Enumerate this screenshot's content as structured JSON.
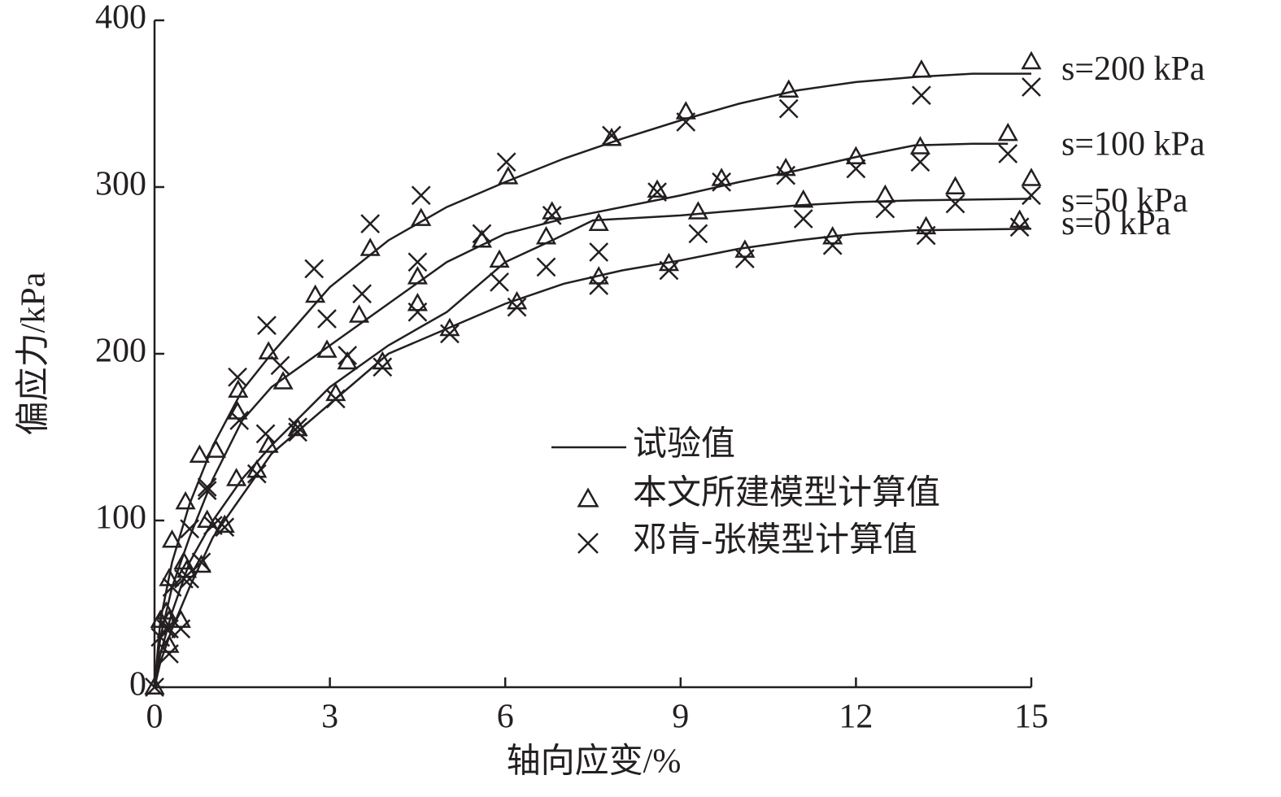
{
  "chart_data": {
    "type": "line",
    "xlabel": "轴向应变/%",
    "ylabel": "偏应力/kPa",
    "xlim": [
      0,
      15
    ],
    "xticks": [
      0,
      3,
      6,
      9,
      12,
      15
    ],
    "ylim": [
      0,
      400
    ],
    "yticks": [
      0,
      100,
      200,
      300,
      400
    ],
    "color": "#231f20",
    "legend": [
      "试验值",
      "本文所建模型计算值",
      "邓肯-张模型计算值"
    ],
    "series": [
      {
        "name": "s=200 kPa",
        "x": [
          0,
          0.1,
          0.3,
          0.6,
          1,
          1.5,
          2,
          3,
          4,
          5,
          6,
          7,
          8,
          9,
          10,
          11,
          12,
          13,
          14,
          15
        ],
        "values": [
          0,
          40,
          75,
          110,
          145,
          178,
          200,
          240,
          268,
          288,
          303,
          317,
          329,
          340,
          350,
          358,
          363,
          366,
          368,
          368
        ],
        "model_x": [
          0,
          0.1,
          0.25,
          0.3,
          0.53,
          0.77,
          1.43,
          1.95,
          2.75,
          3.69,
          4.56,
          6.05,
          7.82,
          9.09,
          10.85,
          13.12,
          15
        ],
        "model": [
          0,
          40,
          65,
          88,
          111,
          139,
          178,
          201,
          235,
          263,
          281,
          306,
          329,
          345,
          358,
          370,
          375
        ],
        "dz_x": [
          0,
          0.1,
          0.3,
          0.6,
          0.9,
          1.42,
          1.92,
          2.73,
          3.69,
          4.56,
          6.02,
          7.82,
          9.09,
          10.85,
          13.12,
          15
        ],
        "dz": [
          0,
          30,
          60,
          95,
          120,
          186,
          217,
          251,
          278,
          295,
          315,
          331,
          339,
          347,
          355,
          360
        ]
      },
      {
        "name": "s=100 kPa",
        "x": [
          0,
          0.1,
          0.3,
          0.6,
          1,
          1.5,
          2,
          3,
          4,
          5,
          6,
          7,
          8,
          9,
          10,
          11,
          12,
          13,
          14,
          14.6
        ],
        "values": [
          0,
          30,
          60,
          90,
          125,
          160,
          180,
          205,
          230,
          255,
          272,
          281,
          288,
          295,
          303,
          310,
          318,
          325,
          326,
          326
        ],
        "model_x": [
          0.2,
          0.5,
          1.05,
          1.42,
          2.2,
          2.95,
          3.5,
          4.5,
          5.6,
          6.8,
          8.6,
          9.7,
          10.8,
          12,
          13.1,
          14.6
        ],
        "model": [
          45,
          75,
          142,
          165,
          183,
          202,
          223,
          246,
          268,
          285,
          298,
          305,
          311,
          318,
          324,
          332
        ],
        "dz_x": [
          0.2,
          0.5,
          0.9,
          1.45,
          2.15,
          2.95,
          3.55,
          4.5,
          5.6,
          6.8,
          8.6,
          9.7,
          10.8,
          12,
          13.1,
          14.6
        ],
        "dz": [
          35,
          65,
          118,
          160,
          193,
          221,
          236,
          255,
          272,
          283,
          297,
          303,
          307,
          311,
          315,
          320
        ]
      },
      {
        "name": "s=50 kPa",
        "x": [
          0,
          0.1,
          0.3,
          0.6,
          1,
          1.5,
          2,
          3,
          4,
          5,
          6,
          6.8,
          7.5,
          8,
          9,
          10,
          11,
          12,
          13,
          15
        ],
        "values": [
          0,
          20,
          45,
          75,
          100,
          125,
          145,
          180,
          205,
          225,
          255,
          268,
          280,
          281,
          283,
          286,
          289,
          291,
          292,
          293
        ],
        "model_x": [
          0.25,
          0.55,
          0.9,
          1.4,
          1.95,
          3.3,
          4.5,
          5.9,
          6.7,
          7.6,
          9.3,
          11.1,
          12.5,
          13.7,
          15
        ],
        "model": [
          40,
          70,
          100,
          125,
          145,
          195,
          230,
          256,
          270,
          278,
          285,
          292,
          295,
          300,
          305
        ],
        "dz_x": [
          0.25,
          0.6,
          1.0,
          1.9,
          2.45,
          3.3,
          4.5,
          5.9,
          6.7,
          7.6,
          9.3,
          11.1,
          12.5,
          13.7,
          15
        ],
        "dz": [
          35,
          65,
          97,
          152,
          156,
          199,
          225,
          243,
          252,
          261,
          272,
          281,
          287,
          290,
          295
        ]
      },
      {
        "name": "s=0 kPa",
        "x": [
          0,
          0.1,
          0.3,
          0.6,
          1,
          1.5,
          2,
          3,
          4,
          5,
          6,
          7,
          8,
          9,
          10,
          11,
          12,
          13,
          15
        ],
        "values": [
          0,
          15,
          35,
          60,
          90,
          115,
          140,
          170,
          200,
          215,
          230,
          242,
          250,
          256,
          263,
          268,
          272,
          274,
          275
        ],
        "model_x": [
          0.25,
          0.45,
          0.8,
          1.2,
          1.75,
          2.45,
          3.1,
          3.9,
          5.05,
          6.2,
          7.6,
          8.8,
          10.1,
          11.6,
          13.2,
          14.8
        ],
        "model": [
          25,
          40,
          73,
          97,
          130,
          155,
          176,
          195,
          215,
          231,
          246,
          254,
          262,
          270,
          276,
          280
        ],
        "dz_x": [
          0.25,
          0.45,
          0.8,
          1.2,
          1.75,
          2.45,
          3.1,
          3.9,
          5.05,
          6.2,
          7.6,
          8.8,
          10.1,
          11.6,
          13.2,
          14.8
        ],
        "dz": [
          20,
          35,
          75,
          96,
          128,
          153,
          173,
          192,
          212,
          228,
          241,
          250,
          257,
          265,
          271,
          276
        ]
      }
    ]
  }
}
